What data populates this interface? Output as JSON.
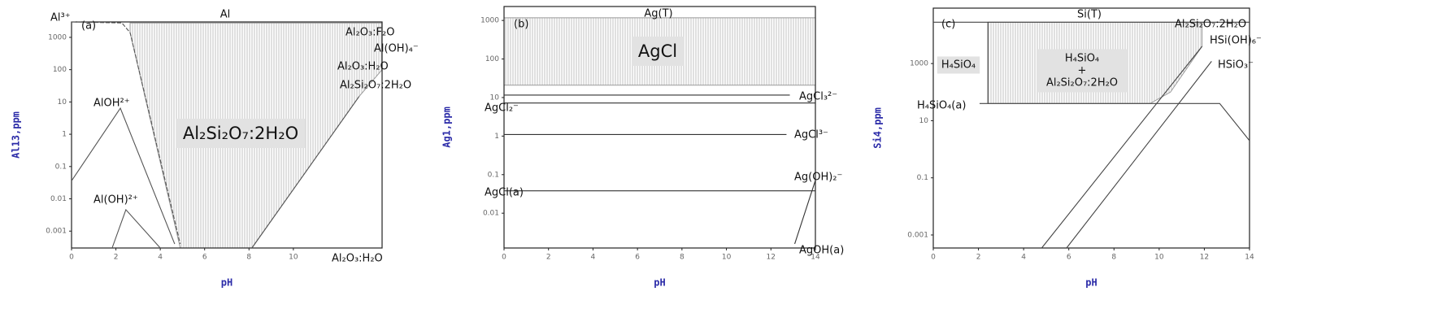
{
  "chart_data": [
    {
      "type": "line",
      "xlabel": "pH",
      "ylabel": "Al13,ppm",
      "log_y": true,
      "xlim": [
        0,
        14
      ],
      "ylim": [
        0.0003,
        3000
      ],
      "xticks": [
        0,
        2,
        4,
        6,
        8,
        10
      ],
      "yticks": [
        0.001,
        0.01,
        0.1,
        1,
        10,
        100,
        1000
      ],
      "series": [
        {
          "color": "#555555",
          "dash": true,
          "x": [
            0,
            2.27,
            2.64,
            4.9
          ],
          "values": [
            3000,
            2800,
            1400,
            0.0004
          ]
        },
        {
          "color": "#555555",
          "x": [
            0,
            2.2,
            4.65
          ],
          "values": [
            0.036,
            6.4,
            0.0004
          ]
        },
        {
          "color": "#555555",
          "x": [
            1.83,
            2.45,
            4.0
          ],
          "values": [
            0.0003,
            0.0046,
            0.0003
          ]
        },
        {
          "color": "#555555",
          "x": [
            8.13,
            12.97
          ],
          "values": [
            0.0003,
            15
          ]
        }
      ],
      "regions": [
        {
          "x": [
            2.64,
            14,
            14,
            12.97,
            8.13,
            4.9,
            2.64
          ],
          "values": [
            2800,
            2800,
            100,
            15,
            0.0003,
            0.0003,
            1400
          ]
        }
      ],
      "annotations": [
        "Al³⁺",
        "(a)",
        "Al",
        "Al₂O₃:F₂O",
        "Al(OH)₄⁻",
        "Al₂O₃:H₂O",
        "Al₂Si₂O₇:2H₂O",
        "AlOH²⁺",
        "Al₂Si₂O₇:2H₂O",
        "Al(OH)²⁺",
        "Al₂O₃:H₂O"
      ]
    },
    {
      "type": "line",
      "xlabel": "pH",
      "ylabel": "Ag1,ppm",
      "log_y": true,
      "xlim": [
        0,
        14
      ],
      "ylim": [
        0.00125,
        2300
      ],
      "xticks": [
        0,
        2,
        4,
        6,
        8,
        10,
        12,
        14
      ],
      "yticks": [
        0.01,
        0.1,
        1,
        10,
        100,
        1000
      ],
      "series": [
        {
          "color": "#333333",
          "x": [
            0,
            12.85
          ],
          "values": [
            11.6,
            11.6
          ]
        },
        {
          "color": "#333333",
          "x": [
            0,
            14
          ],
          "values": [
            7.2,
            7.2
          ]
        },
        {
          "color": "#333333",
          "x": [
            0,
            12.7
          ],
          "values": [
            1.1,
            1.1
          ]
        },
        {
          "color": "#333333",
          "x": [
            0,
            14
          ],
          "values": [
            0.038,
            0.038
          ]
        },
        {
          "color": "#333333",
          "x": [
            13.07,
            14
          ],
          "values": [
            0.0016,
            0.071
          ]
        }
      ],
      "regions": [
        {
          "x": [
            0,
            14,
            14,
            0
          ],
          "values": [
            1170,
            1170,
            21,
            21
          ]
        }
      ],
      "annotations": [
        "(b)",
        "Ag(T)",
        "AgCl",
        "AgCl₃²⁻",
        "AgCl₂⁻",
        "AgCl³⁻",
        "Ag(OH)₂⁻",
        "AgCl(a)",
        "AgOH(a)"
      ]
    },
    {
      "type": "line",
      "xlabel": "pH",
      "ylabel": "Si4,ppm",
      "log_y": true,
      "xlim": [
        0,
        14
      ],
      "ylim": [
        0.00035,
        87000
      ],
      "xticks": [
        0,
        2,
        4,
        6,
        8,
        10,
        12,
        14
      ],
      "yticks": [
        0.001,
        0.1,
        10,
        1000
      ],
      "series": [
        {
          "color": "#444444",
          "x": [
            0,
            14
          ],
          "values": [
            28000,
            28000
          ]
        },
        {
          "color": "#444444",
          "x": [
            2.42,
            2.42
          ],
          "values": [
            28000,
            40
          ]
        },
        {
          "color": "#444444",
          "x": [
            2.05,
            12.68,
            14
          ],
          "values": [
            40,
            40,
            2
          ]
        },
        {
          "color": "#444444",
          "x": [
            4.8,
            11.9
          ],
          "values": [
            0.00035,
            4000
          ]
        },
        {
          "color": "#444444",
          "x": [
            5.9,
            12.32
          ],
          "values": [
            0.00035,
            1200
          ]
        }
      ],
      "regions": [
        {
          "x": [
            2.42,
            11.9,
            11.9,
            10.5,
            9.6,
            2.42
          ],
          "values": [
            28000,
            28000,
            4000,
            100,
            40,
            40
          ]
        }
      ],
      "annotations": [
        "(c)",
        "Si(T)",
        "H₄SiO₄",
        "H₄SiO₄",
        "+",
        "Al₂Si₂O₇:2H₂O",
        "Al₂Si₂O₇:2H₂O",
        "HSi(OH)₆⁻",
        "HSiO₃⁻",
        "H₄SiO₄(a)"
      ]
    }
  ]
}
